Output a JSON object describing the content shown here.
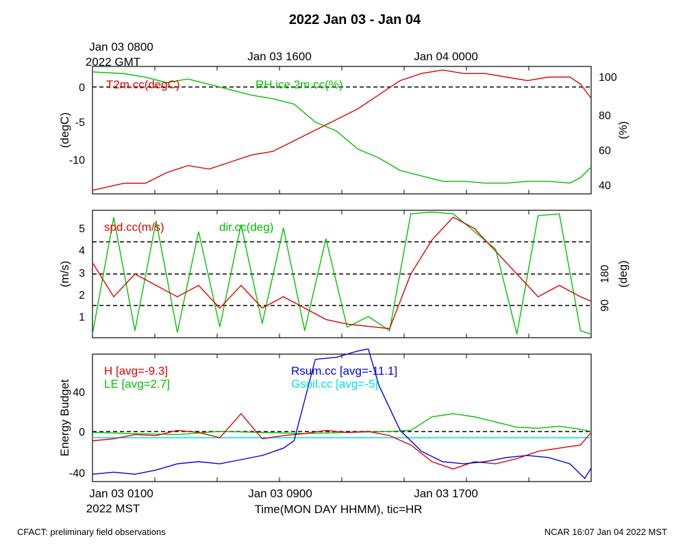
{
  "title": "2022 Jan 03 - Jan 04",
  "top_axis": {
    "gmt_ticks": [
      "Jan 03 0800",
      "Jan 03 1600",
      "Jan 04 0000"
    ],
    "gmt_year": "2022 GMT"
  },
  "bottom_axis": {
    "mst_ticks": [
      "Jan 03 0100",
      "Jan 03 0900",
      "Jan 03 1700"
    ],
    "mst_year": "2022 MST",
    "xlabel": "Time(MON DAY HHMM), tic=HR"
  },
  "footer": {
    "left": "CFACT: preliminary field observations",
    "right": "NCAR 16:07 Jan 04 2022 MST"
  },
  "chart_data": [
    {
      "type": "line",
      "panel": "temperature-humidity",
      "x_hours_mst": [
        0.5,
        24
      ],
      "ylabel_left": "(degC)",
      "ylabel_right": "(%)",
      "ylim_left": [
        -15,
        3
      ],
      "ylim_right": [
        35,
        106
      ],
      "yticks_left": [
        "-10",
        "-5",
        "0"
      ],
      "yticks_right": [
        "40",
        "60",
        "80",
        "100"
      ],
      "reference_lines": [
        {
          "axis": "left",
          "value": 0
        }
      ],
      "series": [
        {
          "name": "T2m.cc(degC)",
          "axis": "left",
          "color": "#e00000",
          "x": [
            0.5,
            2,
            3,
            4,
            5,
            6,
            7,
            8,
            9,
            10,
            11,
            12,
            13,
            14,
            15,
            16,
            17,
            18,
            19,
            20,
            21,
            22,
            23,
            23.5,
            24
          ],
          "values": [
            -14.5,
            -13.5,
            -13.5,
            -12,
            -11,
            -11.5,
            -10.5,
            -9.5,
            -9,
            -7.5,
            -6,
            -4.5,
            -3,
            -1,
            1,
            2,
            2.5,
            2,
            2,
            1.5,
            1,
            1.5,
            1.5,
            0.5,
            -1.5
          ]
        },
        {
          "name": "RH.ice.2m.cc(%)",
          "axis": "right",
          "color": "#00c000",
          "x": [
            0.5,
            2,
            3,
            4,
            5,
            6,
            7,
            8,
            9,
            10,
            11,
            12,
            13,
            14,
            15,
            16,
            17,
            18,
            19,
            20,
            21,
            22,
            23,
            23.5,
            24
          ],
          "values": [
            103,
            102,
            100,
            97,
            99,
            96,
            93,
            90,
            88,
            85,
            75,
            70,
            60,
            55,
            48,
            45,
            42,
            42,
            41,
            41,
            42,
            42,
            41,
            44,
            50
          ]
        }
      ]
    },
    {
      "type": "line",
      "panel": "wind",
      "ylabel_left": "(m/s)",
      "ylabel_right": "(deg)",
      "ylim_left": [
        0.2,
        5.8
      ],
      "ylim_right": [
        0,
        360
      ],
      "yticks_left": [
        "1",
        "2",
        "3",
        "4",
        "5"
      ],
      "yticks_right": [
        "90",
        "180"
      ],
      "reference_lines": [
        {
          "axis": "right",
          "value": 90
        },
        {
          "axis": "right",
          "value": 180
        },
        {
          "axis": "right",
          "value": 270
        }
      ],
      "series": [
        {
          "name": "spd.cc(m/s)",
          "axis": "left",
          "color": "#e00000",
          "x": [
            0.5,
            1.5,
            2.5,
            3.5,
            4.5,
            5.5,
            6.5,
            7.5,
            8.5,
            9.5,
            10.5,
            11.5,
            12.5,
            13.5,
            14.5,
            15.5,
            16.5,
            17.5,
            18.5,
            19.5,
            20.5,
            21.5,
            22.5,
            23.5,
            24
          ],
          "values": [
            3.5,
            2,
            3,
            2.5,
            2,
            2.5,
            1.5,
            2.5,
            1.5,
            2,
            1.5,
            1,
            0.8,
            0.7,
            0.6,
            3,
            4.5,
            5.5,
            5,
            4,
            3,
            2,
            2.5,
            2,
            1.8
          ]
        },
        {
          "name": "dir.cc(deg)",
          "axis": "right",
          "color": "#00c000",
          "x": [
            0.5,
            1.5,
            2.5,
            3.5,
            4.5,
            5.5,
            6.5,
            7.5,
            8.5,
            9.5,
            10.5,
            11.5,
            12.5,
            13.5,
            14.5,
            15.5,
            16.5,
            17.5,
            18.5,
            19.5,
            20.5,
            21.5,
            22.5,
            23.5,
            24
          ],
          "values": [
            10,
            340,
            20,
            330,
            15,
            300,
            30,
            320,
            40,
            310,
            20,
            280,
            30,
            60,
            20,
            350,
            355,
            350,
            300,
            250,
            10,
            345,
            350,
            20,
            10
          ]
        }
      ]
    },
    {
      "type": "line",
      "panel": "energy-budget",
      "ylabel_left": "Energy Budget",
      "ylim": [
        -47,
        75
      ],
      "yticks": [
        "-40",
        "0",
        "40"
      ],
      "reference_lines": [
        {
          "value": 0
        }
      ],
      "series": [
        {
          "name": "H",
          "label": "H [avg=-9.3]",
          "color": "#e00000",
          "x": [
            0.5,
            1.5,
            2.5,
            3.5,
            4.5,
            5.5,
            6.5,
            7.5,
            8.5,
            9.5,
            10.5,
            11.5,
            12.5,
            13.5,
            14.5,
            15.5,
            16.5,
            17.5,
            18.5,
            19.5,
            20.5,
            21.5,
            22.5,
            23.5,
            24
          ],
          "values": [
            -8,
            -6,
            -2,
            -3,
            2,
            0,
            -5,
            18,
            -6,
            -3,
            -1,
            2,
            0,
            1,
            -3,
            -12,
            -28,
            -35,
            -28,
            -30,
            -25,
            -18,
            -15,
            -12,
            0
          ]
        },
        {
          "name": "LE",
          "label": "LE [avg=2.7]",
          "color": "#00c000",
          "x": [
            0.5,
            2.5,
            4.5,
            6.5,
            8.5,
            10.5,
            12.5,
            14.5,
            15.5,
            16.5,
            17.5,
            18.5,
            19.5,
            20.5,
            21.5,
            22.5,
            23.5,
            24
          ],
          "values": [
            0,
            -1,
            -2,
            1,
            0,
            -1,
            0,
            1,
            2,
            15,
            18,
            15,
            10,
            5,
            4,
            6,
            3,
            1
          ]
        },
        {
          "name": "Rsum.cc",
          "label": "Rsum.cc [avg=-11.1]",
          "color": "#0000e0",
          "x": [
            0.5,
            1.5,
            2.5,
            3.5,
            4.5,
            5.5,
            6.5,
            7.5,
            8.5,
            9.5,
            10,
            11,
            12,
            13,
            13.5,
            14,
            15,
            16,
            17,
            18,
            19,
            20,
            21,
            22,
            23,
            23.7,
            24
          ],
          "values": [
            -40,
            -38,
            -40,
            -36,
            -30,
            -28,
            -30,
            -26,
            -22,
            -15,
            -8,
            70,
            72,
            78,
            80,
            45,
            2,
            -18,
            -28,
            -30,
            -28,
            -24,
            -22,
            -24,
            -30,
            -44,
            -34
          ]
        },
        {
          "name": "Gsoil.cc",
          "label": "Gsoil.cc [avg=-5]",
          "color": "#00e0e0",
          "x": [
            0.5,
            24
          ],
          "values": [
            -5,
            -5
          ]
        }
      ]
    }
  ]
}
